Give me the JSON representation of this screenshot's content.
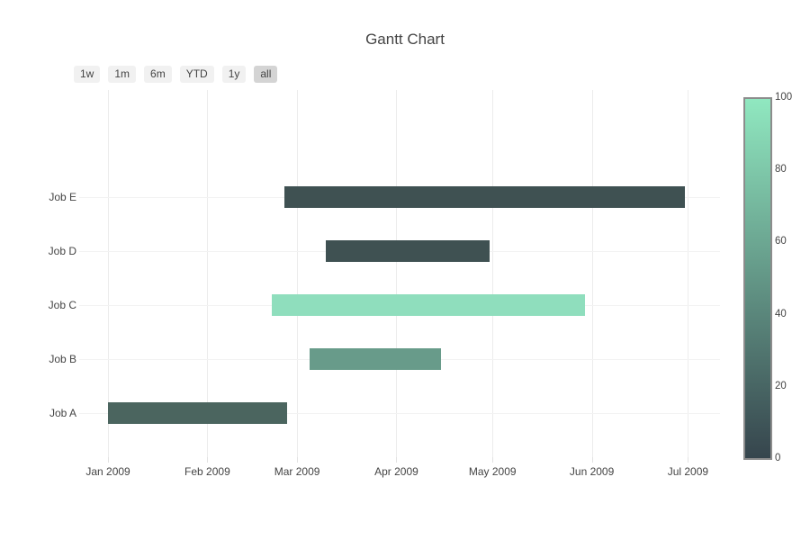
{
  "chart_data": {
    "type": "bar",
    "subtype": "gantt",
    "title": "Gantt Chart",
    "legend_position": "none",
    "grid": true,
    "tasks": [
      {
        "label": "Job A",
        "start": "2009-01-01",
        "finish": "2009-02-26",
        "complete": 20,
        "color": "#4b655f"
      },
      {
        "label": "Job B",
        "start": "2009-03-05",
        "finish": "2009-04-15",
        "complete": 60,
        "color": "#689b8a"
      },
      {
        "label": "Job C",
        "start": "2009-02-21",
        "finish": "2009-05-30",
        "complete": 95,
        "color": "#8fdebd"
      },
      {
        "label": "Job D",
        "start": "2009-03-10",
        "finish": "2009-04-30",
        "complete": 10,
        "color": "#3f5152"
      },
      {
        "label": "Job E",
        "start": "2009-02-25",
        "finish": "2009-06-30",
        "complete": 10,
        "color": "#3f5152"
      }
    ],
    "x_axis": {
      "range": [
        "2008-12-23",
        "2009-07-11"
      ],
      "ticks": [
        {
          "date": "2009-01-01",
          "label": "Jan 2009"
        },
        {
          "date": "2009-02-01",
          "label": "Feb 2009"
        },
        {
          "date": "2009-03-01",
          "label": "Mar 2009"
        },
        {
          "date": "2009-04-01",
          "label": "Apr 2009"
        },
        {
          "date": "2009-05-01",
          "label": "May 2009"
        },
        {
          "date": "2009-06-01",
          "label": "Jun 2009"
        },
        {
          "date": "2009-07-01",
          "label": "Jul 2009"
        }
      ]
    },
    "y_axis": {
      "categories_bottom_to_top": [
        "Job A",
        "Job B",
        "Job C",
        "Job D",
        "Job E"
      ]
    },
    "colorbar": {
      "min": 0,
      "max": 100,
      "ticks": [
        0,
        20,
        40,
        60,
        80,
        100
      ],
      "color_min": "#36454d",
      "color_max": "#90e8c0"
    },
    "rangeselector": {
      "buttons": [
        {
          "label": "1w"
        },
        {
          "label": "1m"
        },
        {
          "label": "6m"
        },
        {
          "label": "YTD"
        },
        {
          "label": "1y"
        },
        {
          "label": "all"
        }
      ],
      "active": "all"
    }
  }
}
